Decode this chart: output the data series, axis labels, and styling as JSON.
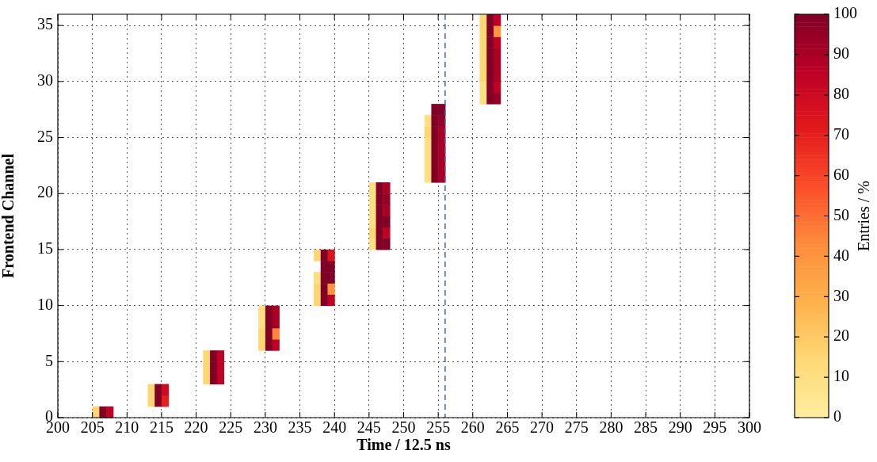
{
  "chart_data": {
    "type": "scatter",
    "xlabel": "Time / 12.5 ns",
    "ylabel": "Frontend Channel",
    "clabel": "Entries / %",
    "marker": "square",
    "grid": true,
    "legend": false,
    "xlim": [
      200,
      300
    ],
    "xticks": [
      200,
      205,
      210,
      215,
      220,
      225,
      230,
      235,
      240,
      245,
      250,
      255,
      260,
      265,
      270,
      275,
      280,
      285,
      290,
      295,
      300
    ],
    "ylim": [
      0,
      36
    ],
    "yticks": [
      0,
      5,
      10,
      15,
      20,
      25,
      30,
      35
    ],
    "clim": [
      0,
      100
    ],
    "cticks": [
      0,
      10,
      20,
      30,
      40,
      50,
      60,
      70,
      80,
      90,
      100
    ],
    "ref_lines": [
      {
        "axis": "x",
        "value": 256,
        "color": "#4c6bb5",
        "line_style": "dashed"
      }
    ],
    "series": [
      {
        "x": [
          205.5,
          206.5,
          207.5,
          213.5,
          214.5,
          215.5,
          213.5,
          214.5,
          215.5,
          221.5,
          222.5,
          223.5,
          221.5,
          222.5,
          223.5,
          221.5,
          222.5,
          223.5,
          229.5,
          230.5,
          231.5,
          229.5,
          230.5,
          231.5,
          229.5,
          230.5,
          231.5,
          229.5,
          230.5,
          231.5,
          237.5,
          238.5,
          239.5,
          237.5,
          238.5,
          239.5,
          237.5,
          238.5,
          239.5,
          238.5,
          239.5,
          237.5,
          238.5,
          239.5,
          245.5,
          246.5,
          247.5,
          245.5,
          246.5,
          247.5,
          245.5,
          246.5,
          247.5,
          245.5,
          246.5,
          247.5,
          245.5,
          246.5,
          247.5,
          245.5,
          246.5,
          247.5,
          253.5,
          254.5,
          255.5,
          253.5,
          254.5,
          255.5,
          253.5,
          254.5,
          255.5,
          253.5,
          254.5,
          255.5,
          253.5,
          254.5,
          255.5,
          253.5,
          254.5,
          255.5,
          254.5,
          255.5,
          261.5,
          262.5,
          263.5,
          261.5,
          262.5,
          263.5,
          261.5,
          262.5,
          263.5,
          261.5,
          262.5,
          263.5,
          261.5,
          262.5,
          263.5,
          261.5,
          262.5,
          263.5,
          261.5,
          262.5,
          263.5,
          261.5,
          262.5,
          263.5
        ],
        "values": [
          0.5,
          0.5,
          0.5,
          1.5,
          1.5,
          1.5,
          2.5,
          2.5,
          2.5,
          3.5,
          3.5,
          3.5,
          4.5,
          4.5,
          4.5,
          5.5,
          5.5,
          5.5,
          6.5,
          6.5,
          6.5,
          7.5,
          7.5,
          7.5,
          8.5,
          8.5,
          8.5,
          9.5,
          9.5,
          9.5,
          10.5,
          10.5,
          10.5,
          11.5,
          11.5,
          11.5,
          12.5,
          12.5,
          12.5,
          13.5,
          13.5,
          14.5,
          14.5,
          14.5,
          15.5,
          15.5,
          15.5,
          16.5,
          16.5,
          16.5,
          17.5,
          17.5,
          17.5,
          18.5,
          18.5,
          18.5,
          19.5,
          19.5,
          19.5,
          20.5,
          20.5,
          20.5,
          21.5,
          21.5,
          21.5,
          22.5,
          22.5,
          22.5,
          23.5,
          23.5,
          23.5,
          24.5,
          24.5,
          24.5,
          25.5,
          25.5,
          25.5,
          26.5,
          26.5,
          26.5,
          27.5,
          27.5,
          28.5,
          28.5,
          28.5,
          29.5,
          29.5,
          29.5,
          30.5,
          30.5,
          30.5,
          31.5,
          31.5,
          31.5,
          32.5,
          32.5,
          32.5,
          33.5,
          33.5,
          33.5,
          34.5,
          34.5,
          34.5,
          35.5,
          35.5,
          35.5
        ],
        "cvalues": [
          15,
          100,
          85,
          15,
          100,
          70,
          15,
          100,
          80,
          15,
          100,
          85,
          15,
          100,
          85,
          15,
          100,
          85,
          15,
          100,
          85,
          15,
          100,
          45,
          10,
          100,
          90,
          10,
          100,
          90,
          15,
          100,
          85,
          15,
          100,
          40,
          10,
          100,
          100,
          100,
          100,
          15,
          100,
          75,
          10,
          100,
          100,
          15,
          100,
          85,
          10,
          100,
          100,
          10,
          100,
          90,
          10,
          100,
          95,
          10,
          100,
          90,
          10,
          100,
          90,
          10,
          100,
          90,
          10,
          100,
          90,
          10,
          100,
          90,
          15,
          100,
          90,
          10,
          100,
          95,
          100,
          100,
          10,
          100,
          95,
          10,
          100,
          85,
          15,
          100,
          90,
          15,
          100,
          90,
          15,
          100,
          90,
          15,
          100,
          85,
          15,
          100,
          40,
          15,
          100,
          85
        ]
      }
    ]
  }
}
